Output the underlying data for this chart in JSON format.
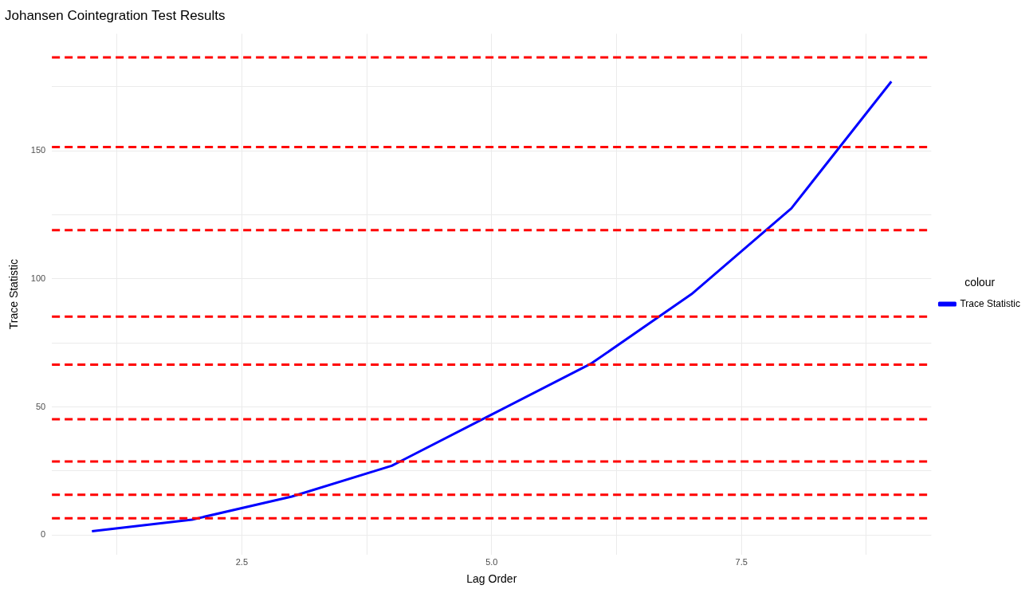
{
  "chart_data": {
    "type": "line",
    "title": "Johansen Cointegration Test Results",
    "xlabel": "Lag Order",
    "ylabel": "Trace Statistic",
    "legend_title": "colour",
    "legend": "right",
    "x": [
      1,
      2,
      3,
      4,
      5,
      6,
      7,
      8,
      9
    ],
    "series": [
      {
        "name": "Trace Statistic",
        "color": "#0000ff",
        "values": [
          1.5,
          6,
          15,
          27,
          47,
          67,
          94,
          127.5,
          177
        ]
      }
    ],
    "xlim": [
      0.6,
      9.4
    ],
    "xticks": [
      {
        "value": 1.25,
        "label": null
      },
      {
        "value": 2.5,
        "label": "2.5"
      },
      {
        "value": 3.75,
        "label": null
      },
      {
        "value": 5,
        "label": "5.0"
      },
      {
        "value": 6.25,
        "label": null
      },
      {
        "value": 7.5,
        "label": "7.5"
      },
      {
        "value": 8.75,
        "label": null
      }
    ],
    "ylim": [
      -7.7,
      195.6
    ],
    "yticks": [
      0,
      {
        "value": 25,
        "label": null
      },
      50,
      {
        "value": 75,
        "label": null
      },
      100,
      {
        "value": 125,
        "label": null
      },
      150,
      {
        "value": 175,
        "label": null
      }
    ],
    "grid": true,
    "marker": "none",
    "line_style": "solid",
    "ref_lines": [
      {
        "axis": "y",
        "value": 6.5,
        "color": "#ff0000",
        "line_style": "dashed"
      },
      {
        "axis": "y",
        "value": 15.7,
        "color": "#ff0000",
        "line_style": "dashed"
      },
      {
        "axis": "y",
        "value": 28.7,
        "color": "#ff0000",
        "line_style": "dashed"
      },
      {
        "axis": "y",
        "value": 45.2,
        "color": "#ff0000",
        "line_style": "dashed"
      },
      {
        "axis": "y",
        "value": 66.5,
        "color": "#ff0000",
        "line_style": "dashed"
      },
      {
        "axis": "y",
        "value": 85.2,
        "color": "#ff0000",
        "line_style": "dashed"
      },
      {
        "axis": "y",
        "value": 119,
        "color": "#ff0000",
        "line_style": "dashed"
      },
      {
        "axis": "y",
        "value": 151.4,
        "color": "#ff0000",
        "line_style": "dashed"
      },
      {
        "axis": "y",
        "value": 186.4,
        "color": "#ff0000",
        "line_style": "dashed"
      }
    ]
  }
}
